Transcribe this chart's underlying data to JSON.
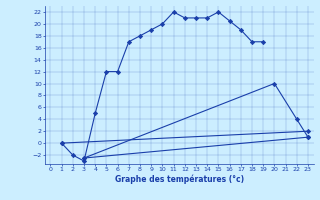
{
  "xlabel": "Graphe des températures (°c)",
  "bg_color": "#cceeff",
  "line_color": "#1a3faa",
  "xlim": [
    -0.5,
    23.5
  ],
  "ylim": [
    -3.5,
    23
  ],
  "xticks": [
    0,
    1,
    2,
    3,
    4,
    5,
    6,
    7,
    8,
    9,
    10,
    11,
    12,
    13,
    14,
    15,
    16,
    17,
    18,
    19,
    20,
    21,
    22,
    23
  ],
  "yticks": [
    -2,
    0,
    2,
    4,
    6,
    8,
    10,
    12,
    14,
    16,
    18,
    20,
    22
  ],
  "line1_x": [
    1,
    2,
    3,
    4,
    5,
    6,
    7,
    8,
    9,
    10,
    11,
    12,
    13,
    14,
    15,
    16,
    17,
    18,
    19
  ],
  "line1_y": [
    0,
    -2,
    -3,
    5,
    12,
    12,
    17,
    18,
    19,
    20,
    22,
    21,
    21,
    21,
    22,
    20.5,
    19,
    17,
    17
  ],
  "line2_x": [
    1,
    23
  ],
  "line2_y": [
    0,
    2
  ],
  "line3_x": [
    3,
    20,
    22,
    23
  ],
  "line3_y": [
    -2.5,
    10,
    4,
    1
  ],
  "line4_x": [
    3,
    23
  ],
  "line4_y": [
    -2.5,
    1
  ]
}
